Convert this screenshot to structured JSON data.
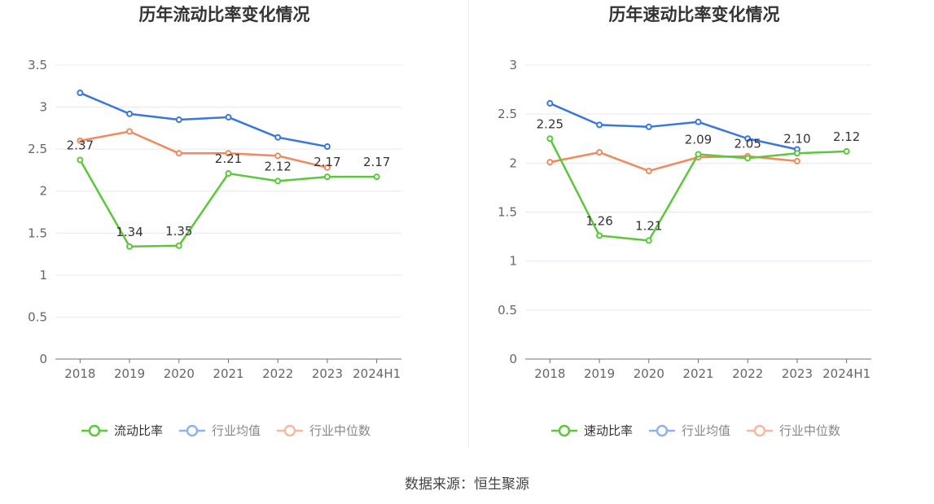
{
  "source_label": "数据来源：恒生聚源",
  "chart_data": [
    {
      "type": "line",
      "title": "历年流动比率变化情况",
      "categories": [
        "2018",
        "2019",
        "2020",
        "2021",
        "2022",
        "2023",
        "2024H1"
      ],
      "ylim": [
        0,
        3.5
      ],
      "yticks": [
        "0",
        "0.5",
        "1",
        "1.5",
        "2",
        "2.5",
        "3",
        "3.5"
      ],
      "grid": true,
      "legend_position": "bottom",
      "series": [
        {
          "name": "流动比率",
          "color": "#5cc73a",
          "values": [
            2.37,
            1.34,
            1.35,
            2.21,
            2.12,
            2.17,
            2.17
          ],
          "labels": [
            "2.37",
            "1.34",
            "1.35",
            "2.21",
            "2.12",
            "2.17",
            "2.17"
          ]
        },
        {
          "name": "行业均值",
          "color": "#3a76e0",
          "values": [
            3.17,
            2.92,
            2.85,
            2.88,
            2.64,
            2.53,
            null
          ]
        },
        {
          "name": "行业中位数",
          "color": "#f08a5d",
          "values": [
            2.6,
            2.71,
            2.45,
            2.45,
            2.42,
            2.28,
            null
          ]
        }
      ]
    },
    {
      "type": "line",
      "title": "历年速动比率变化情况",
      "categories": [
        "2018",
        "2019",
        "2020",
        "2021",
        "2022",
        "2023",
        "2024H1"
      ],
      "ylim": [
        0,
        3
      ],
      "yticks": [
        "0",
        "0.5",
        "1",
        "1.5",
        "2",
        "2.5",
        "3"
      ],
      "grid": true,
      "legend_position": "bottom",
      "series": [
        {
          "name": "速动比率",
          "color": "#5cc73a",
          "values": [
            2.25,
            1.26,
            1.21,
            2.09,
            2.05,
            2.1,
            2.12
          ],
          "labels": [
            "2.25",
            "1.26",
            "1.21",
            "2.09",
            "2.05",
            "2.10",
            "2.12"
          ]
        },
        {
          "name": "行业均值",
          "color": "#3a76e0",
          "values": [
            2.61,
            2.39,
            2.37,
            2.42,
            2.25,
            2.14,
            null
          ]
        },
        {
          "name": "行业中位数",
          "color": "#f08a5d",
          "values": [
            2.01,
            2.11,
            1.92,
            2.06,
            2.07,
            2.02,
            null
          ]
        }
      ]
    }
  ]
}
